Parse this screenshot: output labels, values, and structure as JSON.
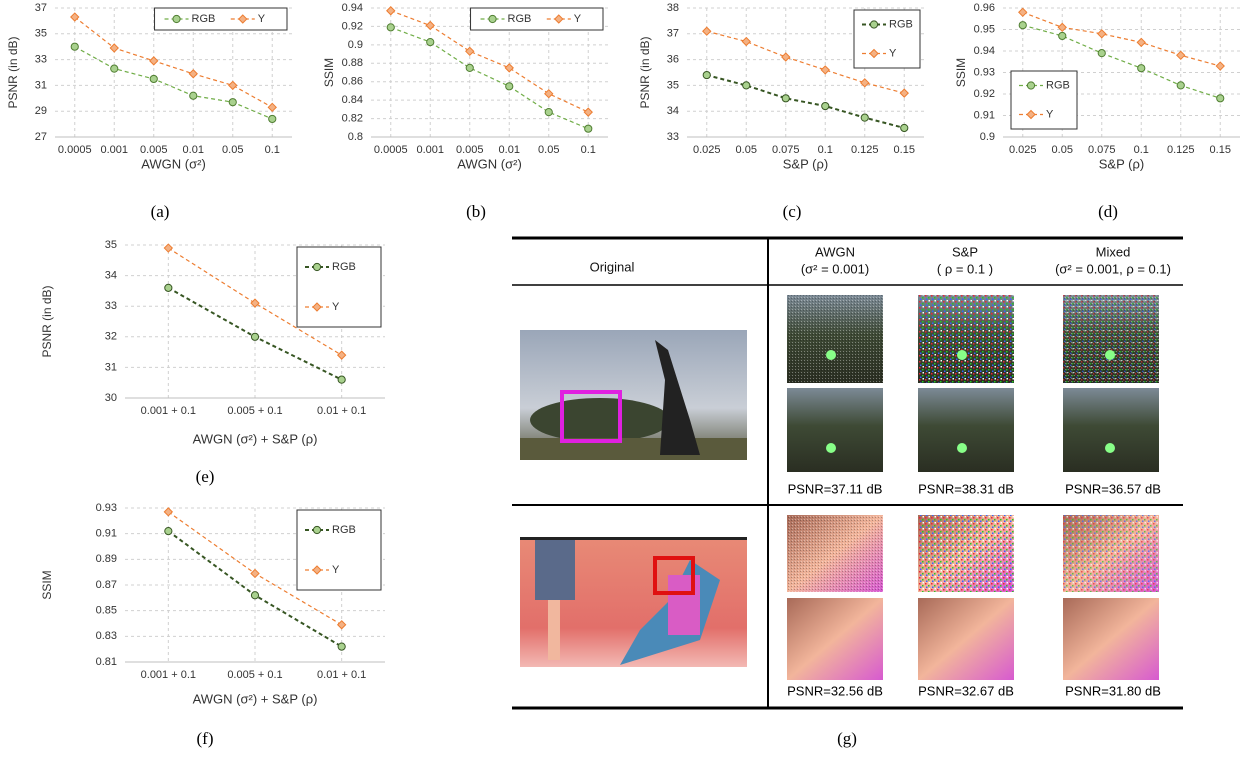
{
  "chart_data": [
    {
      "type": "line",
      "caption": "(a)",
      "x_label": "AWGN (σ²)",
      "y_label": "PSNR (in dB)",
      "categories": [
        "0.0005",
        "0.001",
        "0.005",
        "0.01",
        "0.05",
        "0.1"
      ],
      "ylim": [
        27,
        37
      ],
      "yticks": [
        27,
        29,
        31,
        33,
        35,
        37
      ],
      "grid": true,
      "legend": "top",
      "series": [
        {
          "name": "RGB",
          "color": "#70ad47",
          "marker": "circle",
          "marker_color": "#a9d18e",
          "values": [
            34.0,
            32.3,
            31.5,
            30.2,
            29.7,
            28.4
          ]
        },
        {
          "name": "Y",
          "color": "#ed7d31",
          "marker": "diamond",
          "marker_color": "#f4b183",
          "values": [
            36.3,
            33.9,
            32.9,
            31.9,
            31.0,
            29.3
          ]
        }
      ]
    },
    {
      "type": "line",
      "caption": "(b)",
      "x_label": "AWGN (σ²)",
      "y_label": "SSIM",
      "categories": [
        "0.0005",
        "0.001",
        "0.005",
        "0.01",
        "0.05",
        "0.1"
      ],
      "ylim": [
        0.8,
        0.94
      ],
      "yticks": [
        0.8,
        0.82,
        0.84,
        0.86,
        0.88,
        0.9,
        0.92,
        0.94
      ],
      "grid": true,
      "legend": "top",
      "series": [
        {
          "name": "RGB",
          "color": "#70ad47",
          "marker": "circle",
          "marker_color": "#a9d18e",
          "values": [
            0.919,
            0.903,
            0.875,
            0.855,
            0.827,
            0.809
          ]
        },
        {
          "name": "Y",
          "color": "#ed7d31",
          "marker": "diamond",
          "marker_color": "#f4b183",
          "values": [
            0.937,
            0.921,
            0.893,
            0.875,
            0.847,
            0.827
          ]
        }
      ]
    },
    {
      "type": "line",
      "caption": "(c)",
      "x_label": "S&P (ρ)",
      "y_label": "PSNR (in dB)",
      "categories": [
        "0.025",
        "0.05",
        "0.075",
        "0.1",
        "0.125",
        "0.15"
      ],
      "ylim": [
        33,
        38
      ],
      "yticks": [
        33,
        34,
        35,
        36,
        37,
        38
      ],
      "grid": true,
      "legend": "upper right",
      "series": [
        {
          "name": "RGB",
          "color": "#375623",
          "marker": "circle",
          "marker_color": "#a9d18e",
          "values": [
            35.4,
            35.0,
            34.5,
            34.2,
            33.75,
            33.35
          ]
        },
        {
          "name": "Y",
          "color": "#ed7d31",
          "marker": "diamond",
          "marker_color": "#f4b183",
          "values": [
            37.1,
            36.7,
            36.1,
            35.6,
            35.1,
            34.7
          ]
        }
      ]
    },
    {
      "type": "line",
      "caption": "(d)",
      "x_label": "S&P (ρ)",
      "y_label": "SSIM",
      "categories": [
        "0.025",
        "0.05",
        "0.075",
        "0.1",
        "0.125",
        "0.15"
      ],
      "ylim": [
        0.9,
        0.96
      ],
      "yticks": [
        0.9,
        0.91,
        0.92,
        0.93,
        0.94,
        0.95,
        0.96
      ],
      "grid": true,
      "legend": "lower left",
      "series": [
        {
          "name": "RGB",
          "color": "#70ad47",
          "marker": "circle",
          "marker_color": "#a9d18e",
          "values": [
            0.952,
            0.947,
            0.939,
            0.932,
            0.924,
            0.918
          ]
        },
        {
          "name": "Y",
          "color": "#ed7d31",
          "marker": "diamond",
          "marker_color": "#f4b183",
          "values": [
            0.958,
            0.951,
            0.948,
            0.944,
            0.938,
            0.933
          ]
        }
      ]
    },
    {
      "type": "line",
      "caption": "(e)",
      "x_label": "AWGN (σ²) + S&P (ρ)",
      "y_label": "PSNR (in dB)",
      "categories": [
        "0.001 + 0.1",
        "0.005 + 0.1",
        "0.01 + 0.1"
      ],
      "ylim": [
        30,
        35
      ],
      "yticks": [
        30,
        31,
        32,
        33,
        34,
        35
      ],
      "grid": true,
      "legend": "upper right",
      "series": [
        {
          "name": "RGB",
          "color": "#375623",
          "marker": "circle",
          "marker_color": "#a9d18e",
          "values": [
            33.6,
            32.0,
            30.6
          ]
        },
        {
          "name": "Y",
          "color": "#ed7d31",
          "marker": "diamond",
          "marker_color": "#f4b183",
          "values": [
            34.9,
            33.1,
            31.4
          ]
        }
      ]
    },
    {
      "type": "line",
      "caption": "(f)",
      "x_label": "AWGN (σ²) + S&P (ρ)",
      "y_label": "SSIM",
      "categories": [
        "0.001 + 0.1",
        "0.005 + 0.1",
        "0.01 + 0.1"
      ],
      "ylim": [
        0.81,
        0.93
      ],
      "yticks": [
        0.81,
        0.83,
        0.85,
        0.87,
        0.89,
        0.91,
        0.93
      ],
      "grid": true,
      "legend": "upper right",
      "series": [
        {
          "name": "RGB",
          "color": "#375623",
          "marker": "circle",
          "marker_color": "#a9d18e",
          "values": [
            0.912,
            0.862,
            0.822
          ]
        },
        {
          "name": "Y",
          "color": "#ed7d31",
          "marker": "diamond",
          "marker_color": "#f4b183",
          "values": [
            0.927,
            0.879,
            0.839
          ]
        }
      ]
    }
  ],
  "table": {
    "caption": "(g)",
    "original": "Original",
    "columns": [
      {
        "name": "AWGN",
        "param": "(σ² = 0.001)"
      },
      {
        "name": "S&P",
        "param": "( ρ = 0.1 )"
      },
      {
        "name": "Mixed",
        "param": "(σ² = 0.001, ρ = 0.1)"
      }
    ],
    "rows": [
      {
        "psnr": [
          "PSNR=37.11 dB",
          "PSNR=38.31 dB",
          "PSNR=36.57 dB"
        ]
      },
      {
        "psnr": [
          "PSNR=32.56 dB",
          "PSNR=32.67 dB",
          "PSNR=31.80 dB"
        ]
      }
    ]
  }
}
